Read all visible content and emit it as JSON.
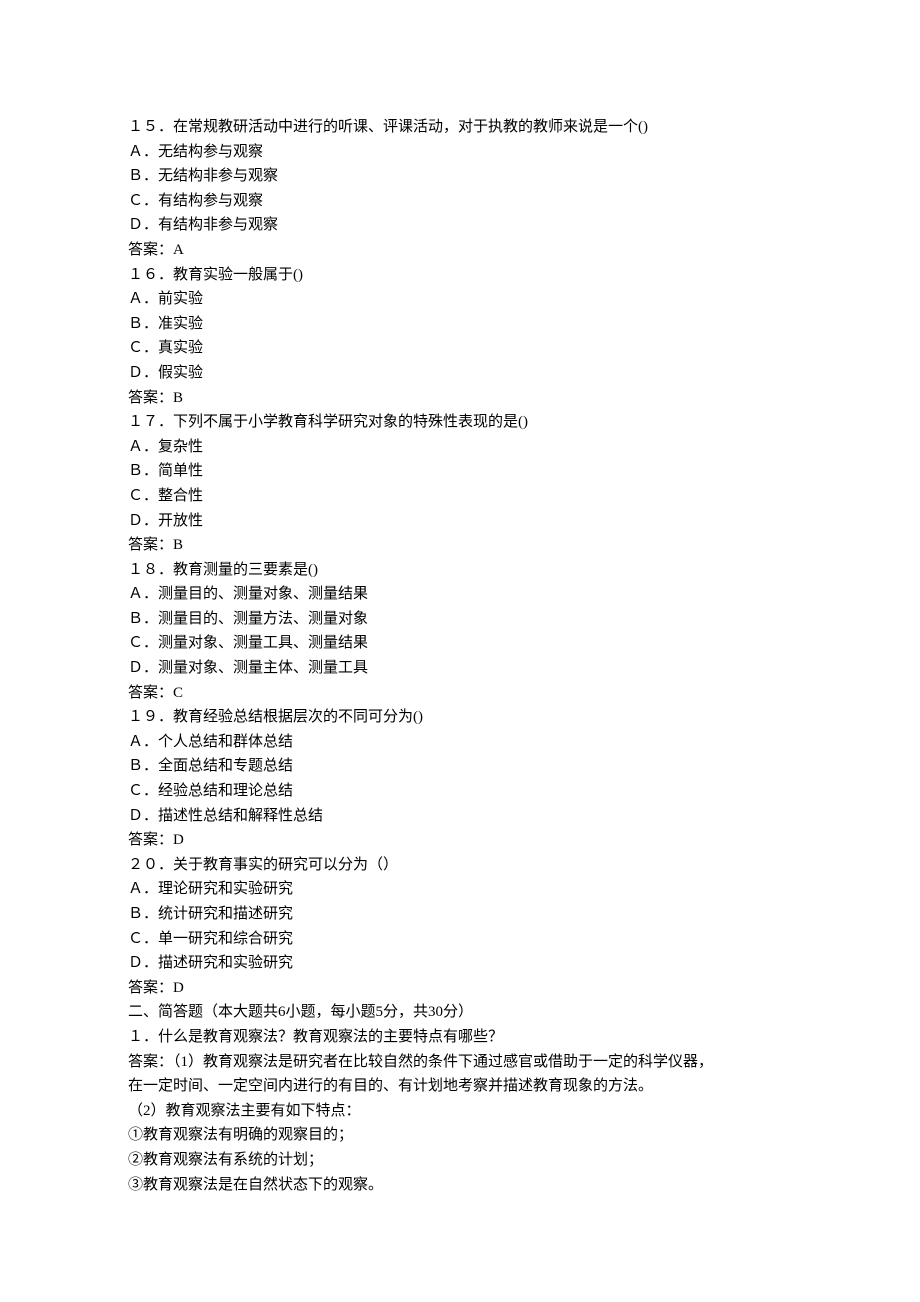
{
  "lines": [
    "１５．在常规教研活动中进行的听课、评课活动，对于执教的教师来说是一个()",
    "Ａ．无结构参与观察",
    "Ｂ．无结构非参与观察",
    "Ｃ．有结构参与观察",
    "Ｄ．有结构非参与观察",
    "答案：A",
    "１６．教育实验一般属于()",
    "Ａ．前实验",
    "Ｂ．准实验",
    "Ｃ．真实验",
    "Ｄ．假实验",
    "答案：B",
    "１７．下列不属于小学教育科学研究对象的特殊性表现的是()",
    "Ａ．复杂性",
    "Ｂ．简单性",
    "Ｃ．整合性",
    "Ｄ．开放性",
    "答案：B",
    "１８．教育测量的三要素是()",
    "Ａ．测量目的、测量对象、测量结果",
    "Ｂ．测量目的、测量方法、测量对象",
    "Ｃ．测量对象、测量工具、测量结果",
    "Ｄ．测量对象、测量主体、测量工具",
    "答案：C",
    "１９．教育经验总结根据层次的不同可分为()",
    "Ａ．个人总结和群体总结",
    "Ｂ．全面总结和专题总结",
    "Ｃ．经验总结和理论总结",
    "Ｄ．描述性总结和解释性总结",
    "答案：D",
    "２０．关于教育事实的研究可以分为（）",
    "Ａ．理论研究和实验研究",
    "Ｂ．统计研究和描述研究",
    "Ｃ．单一研究和综合研究",
    "Ｄ．描述研究和实验研究",
    "答案：D",
    "二、简答题（本大题共6小题，每小题5分，共30分）",
    "１．什么是教育观察法？教育观察法的主要特点有哪些？",
    "答案：（1）教育观察法是研究者在比较自然的条件下通过感官或借助于一定的科学仪器，",
    "在一定时间、一定空间内进行的有目的、有计划地考察并描述教育现象的方法。",
    "（2）教育观察法主要有如下特点：",
    "①教育观察法有明确的观察目的；",
    "②教育观察法有系统的计划；",
    "③教育观察法是在自然状态下的观察。"
  ]
}
